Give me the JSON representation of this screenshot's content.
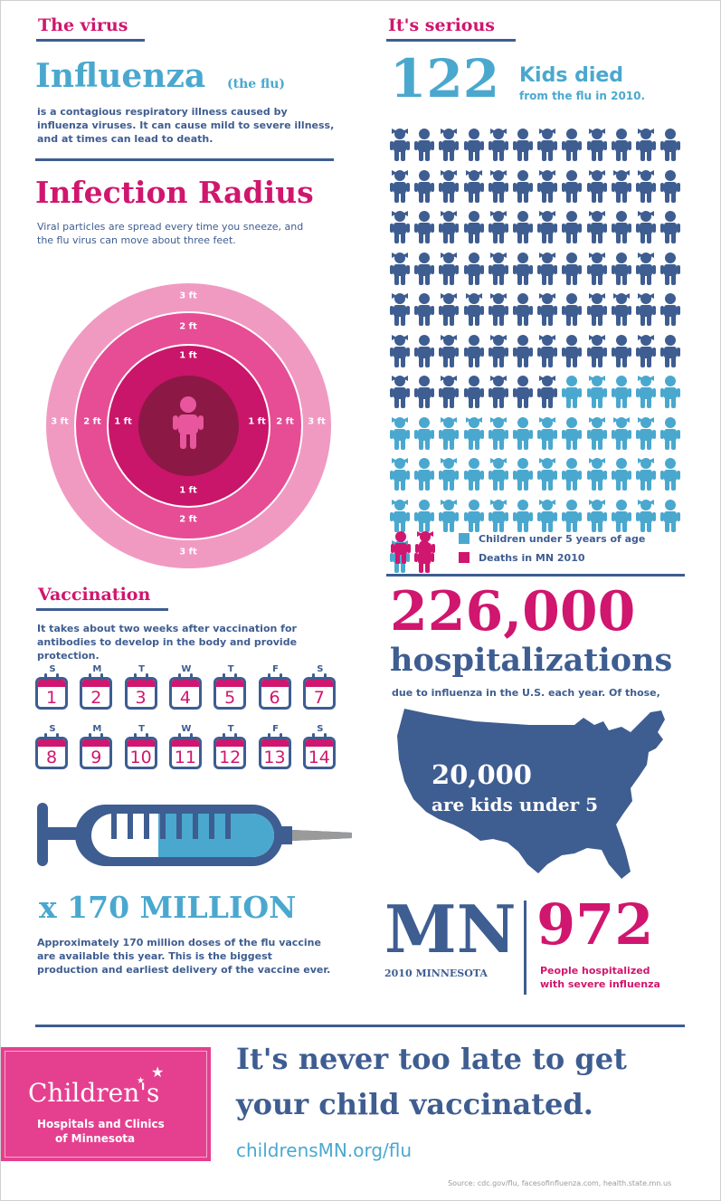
{
  "colors": {
    "pink": "#d0166e",
    "blue": "#3e5d91",
    "teal": "#4aa8cf",
    "ring3": "#f09ac2",
    "ring2": "#e64d95",
    "ring1": "#c9156a",
    "center": "#8c1846"
  },
  "virus": {
    "section_title": "The virus",
    "headline": "Influenza",
    "subhead": "(the flu)",
    "description": "is a contagious respiratory illness caused by influenza viruses. It can cause mild to severe illness, and at times can lead to death."
  },
  "radius": {
    "title": "Infection Radius",
    "description": "Viral particles are spread every time you sneeze, and the flu virus can move about three feet.",
    "label_3": "3 ft",
    "label_2": "2 ft",
    "label_1": "1 ft",
    "center_icon": "child-icon"
  },
  "serious": {
    "section_title": "It's serious",
    "count": "122",
    "count_label": "Kids died",
    "count_sub": "from the flu in 2010.",
    "total_kids": 122,
    "under5_kids": 43,
    "mn_deaths": 3,
    "legend": [
      {
        "label": "Children under 5 years of age",
        "color": "#4aa8cf"
      },
      {
        "label": "Deaths in MN 2010",
        "color": "#d0166e"
      }
    ]
  },
  "vaccination": {
    "section_title": "Vaccination",
    "description": "It takes about two weeks after vaccination for antibodies to develop in the body and provide protection.",
    "weekdays": [
      "S",
      "M",
      "T",
      "W",
      "T",
      "F",
      "S"
    ],
    "days": [
      "1",
      "2",
      "3",
      "4",
      "5",
      "6",
      "7",
      "8",
      "9",
      "10",
      "11",
      "12",
      "13",
      "14"
    ],
    "syringe_icon": "syringe-icon",
    "multiplier": "x 170 MILLION",
    "note": "Approximately 170 million doses of the flu vaccine are available this year. This is the biggest production and earliest delivery of the vaccine ever."
  },
  "hospital": {
    "count": "226,000",
    "label": "hospitalizations",
    "sub": "due to influenza in the U.S. each year. Of those,",
    "map_icon": "usa-map-icon",
    "kids_count": "20,000",
    "kids_label": "are kids under 5"
  },
  "minnesota": {
    "code": "MN",
    "year_label": "2010 MINNESOTA",
    "count": "972",
    "count_label": "People hospitalized with severe influenza"
  },
  "footer": {
    "logo_main": "Children's",
    "logo_line1": "Hospitals and Clinics",
    "logo_line2": "of Minnesota",
    "tagline_1": "It's never too late to get",
    "tagline_2": "your child vaccinated.",
    "url": "childrensMN.org/flu",
    "source": "Source: cdc.gov/flu, facesofinfluenza.com, health.state.mn.us"
  }
}
